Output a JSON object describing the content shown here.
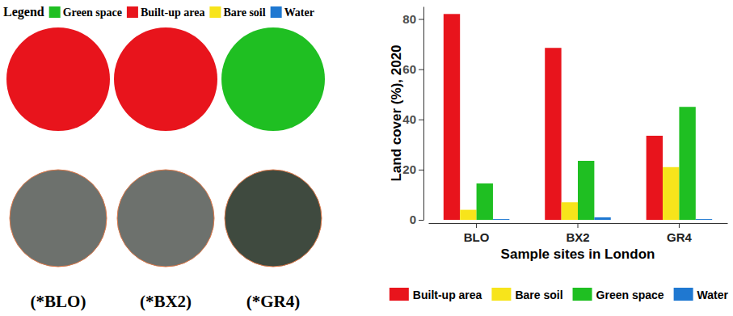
{
  "chart_data": {
    "type": "bar",
    "y_label": "Land cover (%), 2020",
    "x_label": "Sample sites in London",
    "categories": [
      "BLO",
      "BX2",
      "GR4"
    ],
    "series": [
      {
        "name": "Built-up area",
        "color": "#e8141c",
        "values": [
          82,
          68.5,
          33.5
        ]
      },
      {
        "name": "Bare soil",
        "color": "#f7e41b",
        "values": [
          4,
          7,
          21
        ]
      },
      {
        "name": "Green space",
        "color": "#1fbf22",
        "values": [
          14.5,
          23.5,
          45
        ]
      },
      {
        "name": "Water",
        "color": "#1f78d1",
        "values": [
          0.3,
          1,
          0.3
        ]
      }
    ],
    "ylim": [
      0,
      85
    ],
    "yticks": [
      0,
      20,
      40,
      60,
      80
    ],
    "grid": false,
    "legend": "bottom"
  },
  "map_panel": {
    "legend_title": "Legend",
    "legend_items": [
      {
        "name": "Green space",
        "color": "#1fbf22"
      },
      {
        "name": "Built-up area",
        "color": "#e8141c"
      },
      {
        "name": "Bare soil",
        "color": "#f7e41b"
      },
      {
        "name": "Water",
        "color": "#1f78d1"
      }
    ],
    "site_labels": [
      "(*BLO)",
      "(*BX2)",
      "(*GR4)"
    ]
  }
}
